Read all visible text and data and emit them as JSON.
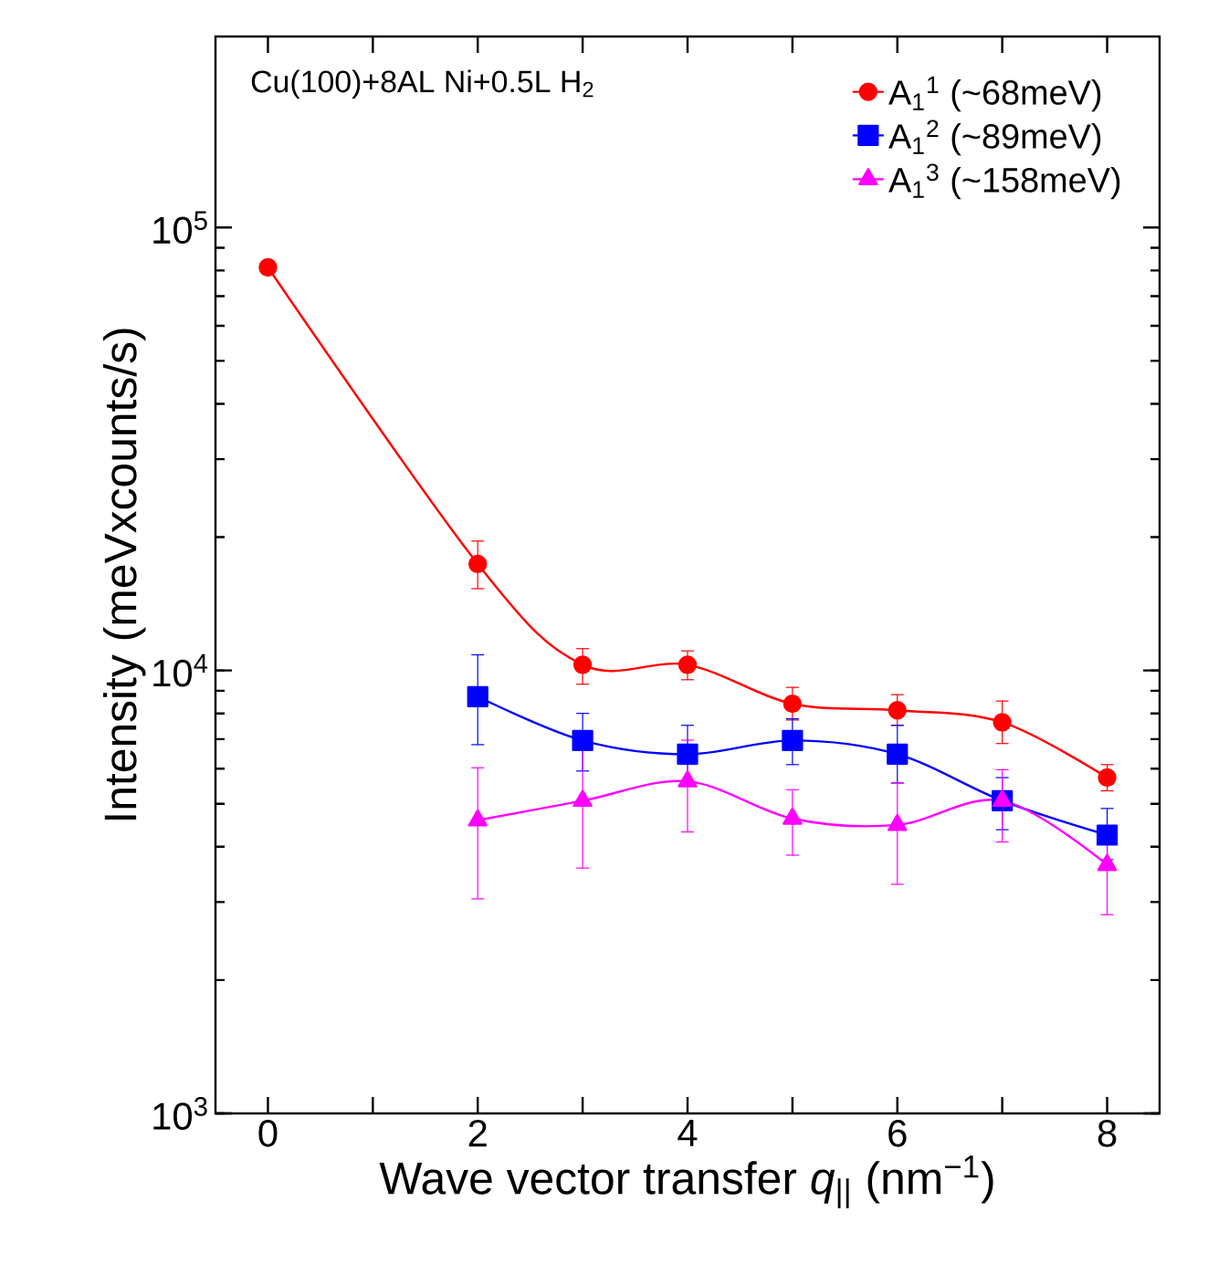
{
  "chart_data": {
    "type": "line",
    "xlabel": "Wave vector transfer *q*$_{||}$ (nm$^{−1}$)",
    "ylabel": "Intensity (meVxcounts/s)",
    "annotations": [
      "Cu(100)+8AL Ni+0.5L H$_{2}$"
    ],
    "log": "y",
    "xlim": [
      -0.5,
      8.5
    ],
    "ylim": [
      1000,
      270000
    ],
    "xticks": [
      0,
      {
        "value": 1,
        "label": null
      },
      2,
      {
        "value": 3,
        "label": null
      },
      4,
      {
        "value": 5,
        "label": null
      },
      6,
      {
        "value": 7,
        "label": null
      },
      8
    ],
    "yticks": [
      {
        "value": 1000,
        "label": "10$^{3}$"
      },
      {
        "value": 10000,
        "label": "10$^{4}$"
      },
      {
        "value": 100000,
        "label": "10$^{5}$"
      }
    ],
    "grid": false,
    "legend": "top right",
    "line_style": "solid",
    "series": [
      {
        "name": "A$_{1}$$^{1}$ (~68meV)",
        "color": "#ff0000",
        "marker": "circle",
        "x": [
          0,
          2,
          3,
          4,
          5,
          6,
          7,
          8
        ],
        "values": [
          81300,
          17400,
          10300,
          10300,
          8410,
          8130,
          7640,
          5730
        ],
        "errors": [
          null,
          [
            15300,
            19600
          ],
          [
            9310,
            11200
          ],
          [
            9530,
            11070
          ],
          [
            7730,
            9160
          ],
          [
            7520,
            8820
          ],
          [
            6840,
            8530
          ],
          [
            5350,
            6130
          ]
        ]
      },
      {
        "name": "A$_{1}$$^{2}$ (~89meV)",
        "color": "#0000ff",
        "marker": "square",
        "x": [
          2,
          3,
          4,
          5,
          6,
          7,
          8
        ],
        "values": [
          8730,
          6950,
          6470,
          6950,
          6470,
          5080,
          4250
        ],
        "errors": [
          [
            6800,
            10850
          ],
          [
            5930,
            8000
          ],
          [
            5620,
            7520
          ],
          [
            6130,
            7780
          ],
          [
            5570,
            7520
          ],
          [
            4370,
            5730
          ],
          [
            3740,
            4880
          ]
        ]
      },
      {
        "name": "A$_{1}$$^{3}$ (~158meV)",
        "color": "#ff00ff",
        "marker": "triangle",
        "x": [
          2,
          3,
          4,
          5,
          6,
          7,
          8
        ],
        "values": [
          4590,
          5080,
          5620,
          4630,
          4480,
          5080,
          3640
        ],
        "errors": [
          [
            3050,
            6030
          ],
          [
            3580,
            6760
          ],
          [
            4320,
            6960
          ],
          [
            3830,
            5380
          ],
          [
            3290,
            5570
          ],
          [
            4100,
            5970
          ],
          [
            2810,
            4440
          ]
        ]
      }
    ]
  }
}
